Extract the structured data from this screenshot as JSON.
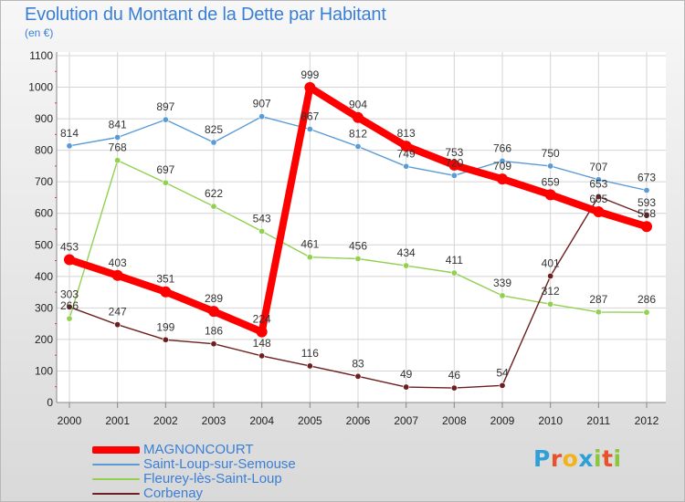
{
  "page": {
    "title": "Evolution du Montant de la Dette par Habitant",
    "unit": "(en €)"
  },
  "logo": {
    "text": "Proxiti",
    "colors": [
      "#2f9fd7",
      "#e8522a",
      "#f2b21a",
      "#2f9fd7",
      "#8cc63f",
      "#e8522a",
      "#8cc63f"
    ]
  },
  "chart_data": {
    "type": "line",
    "title": "Evolution du Montant de la Dette par Habitant",
    "subtitle": "(en €)",
    "x": [
      "2000",
      "2001",
      "2002",
      "2003",
      "2004",
      "2005",
      "2006",
      "2007",
      "2008",
      "2009",
      "2010",
      "2011",
      "2012"
    ],
    "ylim": [
      0,
      1100
    ],
    "yticks": [
      "0",
      "100",
      "200",
      "300",
      "400",
      "500",
      "600",
      "700",
      "800",
      "900",
      "1000",
      "1100"
    ],
    "grid": true,
    "legend_position": "bottom-left",
    "series": [
      {
        "name": "MAGNONCOURT",
        "color": "#ff0000",
        "emphasis": true,
        "values": [
          453,
          403,
          351,
          289,
          224,
          999,
          904,
          813,
          753,
          709,
          659,
          605,
          558
        ],
        "labels": [
          "453",
          "403",
          "351",
          "289",
          "224",
          "999",
          "904",
          "813",
          "753",
          "709",
          "659",
          "605",
          "558"
        ]
      },
      {
        "name": "Saint-Loup-sur-Semouse",
        "color": "#5b9bd5",
        "values": [
          814,
          841,
          897,
          825,
          907,
          867,
          812,
          749,
          720,
          766,
          750,
          707,
          673
        ],
        "labels": [
          "814",
          "841",
          "897",
          "825",
          "907",
          "867",
          "812",
          "749",
          "720",
          "766",
          "750",
          "707",
          "673"
        ]
      },
      {
        "name": "Fleurey-lès-Saint-Loup",
        "color": "#92d050",
        "values": [
          266,
          768,
          697,
          622,
          543,
          461,
          456,
          434,
          411,
          339,
          312,
          287,
          286
        ],
        "labels": [
          "266",
          "768",
          "697",
          "622",
          "543",
          "461",
          "456",
          "434",
          "411",
          "339",
          "312",
          "287",
          "286"
        ]
      },
      {
        "name": "Corbenay",
        "color": "#6b1f1f",
        "values": [
          303,
          247,
          199,
          186,
          148,
          116,
          83,
          49,
          46,
          54,
          401,
          653,
          593
        ],
        "labels": [
          "303",
          "247",
          "199",
          "186",
          "148",
          "116",
          "83",
          "49",
          "46",
          "54",
          "401",
          "653",
          "593"
        ]
      }
    ]
  }
}
